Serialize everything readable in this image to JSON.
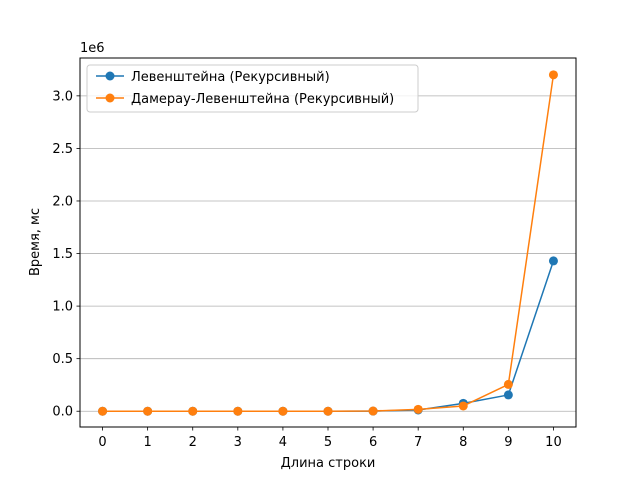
{
  "chart_data": {
    "type": "line",
    "title": "",
    "xlabel": "Длина строки",
    "ylabel": "Время, мс",
    "offset_label": "1e6",
    "x": [
      0,
      1,
      2,
      3,
      4,
      5,
      6,
      7,
      8,
      9,
      10
    ],
    "xlim": [
      -0.5,
      10.5
    ],
    "ylim": [
      -150000,
      3360000
    ],
    "xticks": [
      0,
      1,
      2,
      3,
      4,
      5,
      6,
      7,
      8,
      9,
      10
    ],
    "xtick_labels": [
      "0",
      "1",
      "2",
      "3",
      "4",
      "5",
      "6",
      "7",
      "8",
      "9",
      "10"
    ],
    "yticks": [
      0,
      500000,
      1000000,
      1500000,
      2000000,
      2500000,
      3000000
    ],
    "ytick_labels": [
      "0.0",
      "0.5",
      "1.0",
      "1.5",
      "2.0",
      "2.5",
      "3.0"
    ],
    "grid": "horizontal",
    "legend_position": "top-left",
    "series": [
      {
        "name": "Левенштейна (Рекурсивный)",
        "color": "#1f77b4",
        "values": [
          0,
          0,
          0,
          0,
          0,
          100,
          1500,
          12000,
          75000,
          155000,
          1430000
        ]
      },
      {
        "name": "Дамерау-Левенштейна (Рекурсивный)",
        "color": "#ff7f0e",
        "values": [
          0,
          0,
          0,
          0,
          0,
          100,
          2000,
          18000,
          50000,
          255000,
          3200000
        ]
      }
    ]
  }
}
